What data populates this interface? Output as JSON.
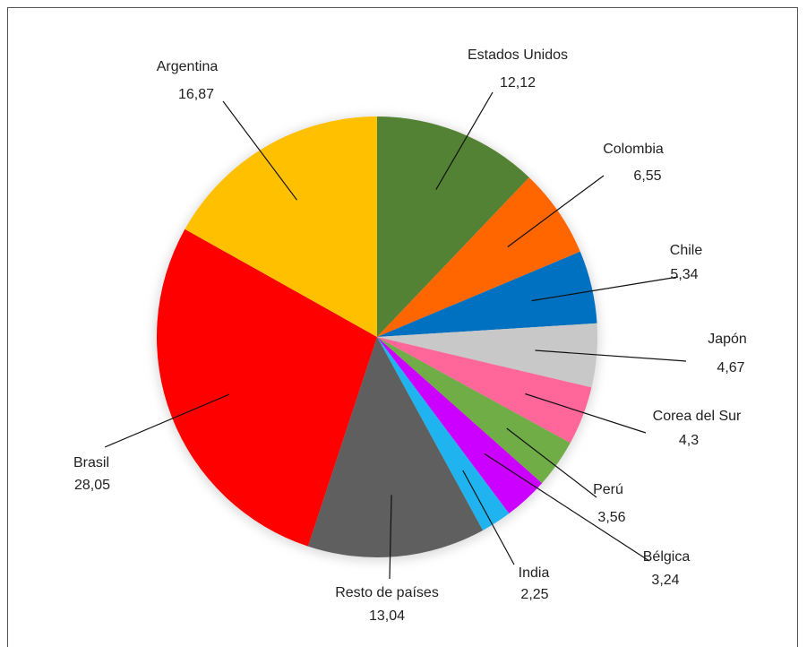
{
  "chart_data": {
    "type": "pie",
    "categories": [
      "Estados Unidos",
      "Colombia",
      "Chile",
      "Japón",
      "Corea del Sur",
      "Perú",
      "Bélgica",
      "India",
      "Resto de países",
      "Brasil",
      "Argentina"
    ],
    "values": [
      12.12,
      6.55,
      5.34,
      4.67,
      4.3,
      3.56,
      3.24,
      2.25,
      13.04,
      28.05,
      16.87
    ],
    "value_labels": [
      "12,12",
      "6,55",
      "5,34",
      "4,67",
      "4,3",
      "3,56",
      "3,24",
      "2,25",
      "13,04",
      "28,05",
      "16,87"
    ],
    "colors": [
      "#548235",
      "#FF6600",
      "#0070C0",
      "#C8C8C8",
      "#FF6699",
      "#70AD47",
      "#CC00FF",
      "#1FB3F0",
      "#5F5F5F",
      "#FF0000",
      "#FFC000"
    ],
    "start_angle": "12 o'clock",
    "direction": "clockwise"
  }
}
